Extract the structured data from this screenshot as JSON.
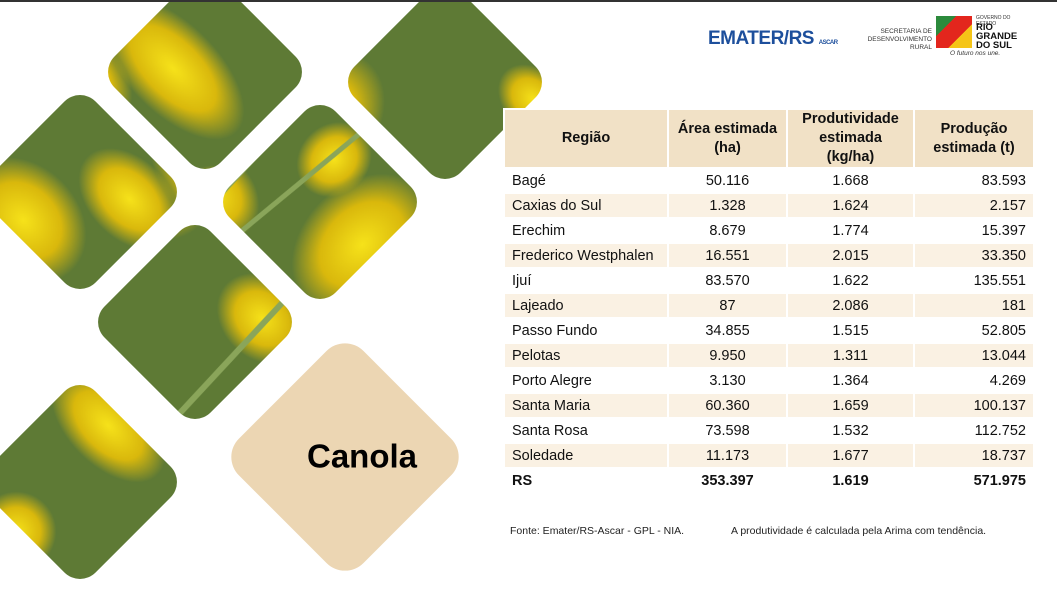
{
  "logos": {
    "emater": "EMATER/RS",
    "ascar": "ASCAR",
    "secretaria": "SECRETARIA DE DESENVOLVIMENTO RURAL",
    "governo": "GOVERNO DO ESTADO",
    "estado": "RIO GRANDE DO SUL",
    "slogan": "O futuro nos une."
  },
  "title": "Canola",
  "table": {
    "header": [
      "Região",
      "Área estimada (ha)",
      "Produtividade estimada (kg/ha)",
      "Produção estimada (t)"
    ],
    "rows": [
      [
        "Bagé",
        "50.116",
        "1.668",
        "83.593"
      ],
      [
        "Caxias do Sul",
        "1.328",
        "1.624",
        "2.157"
      ],
      [
        "Erechim",
        "8.679",
        "1.774",
        "15.397"
      ],
      [
        "Frederico Westphalen",
        "16.551",
        "2.015",
        "33.350"
      ],
      [
        "Ijuí",
        "83.570",
        "1.622",
        "135.551"
      ],
      [
        "Lajeado",
        "87",
        "2.086",
        "181"
      ],
      [
        "Passo Fundo",
        "34.855",
        "1.515",
        "52.805"
      ],
      [
        "Pelotas",
        "9.950",
        "1.311",
        "13.044"
      ],
      [
        "Porto Alegre",
        "3.130",
        "1.364",
        "4.269"
      ],
      [
        "Santa Maria",
        "60.360",
        "1.659",
        "100.137"
      ],
      [
        "Santa Rosa",
        "73.598",
        "1.532",
        "112.752"
      ],
      [
        "Soledade",
        "11.173",
        "1.677",
        "18.737"
      ]
    ],
    "total": [
      "RS",
      "353.397",
      "1.619",
      "571.975"
    ]
  },
  "footnotes": [
    "Fonte: Emater/RS-Ascar - GPL - NIA.",
    "A produtividade é calculada pela Arima com tendência."
  ]
}
